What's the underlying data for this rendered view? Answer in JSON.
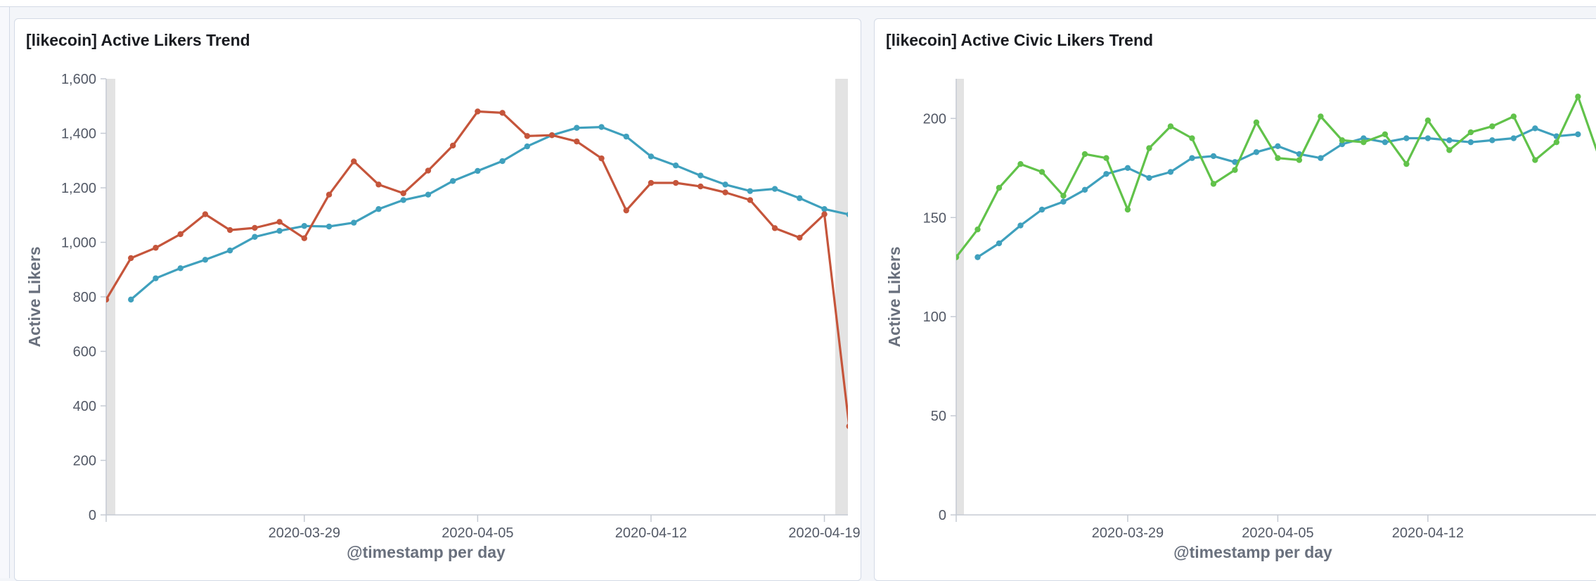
{
  "colors": {
    "series_teal": "#3fa0bd",
    "series_red": "#c5553b",
    "series_green": "#61c24a",
    "axis": "#c5cad3",
    "edge_band": "#e3e3e3"
  },
  "chart_data": [
    {
      "type": "line",
      "title": "[likecoin] Active Likers Trend",
      "xlabel": "@timestamp per day",
      "ylabel": "Active Likers",
      "ylim": [
        0,
        1600
      ],
      "yticks": [
        "0",
        "200",
        "400",
        "600",
        "800",
        "1,000",
        "1,200",
        "1,400",
        "1,600"
      ],
      "xticks": [
        "2020-03-29",
        "2020-04-05",
        "2020-04-12",
        "2020-04-19"
      ],
      "grid": false,
      "legend": "none",
      "series": [
        {
          "color": "#3fa0bd",
          "points": [
            [
              "2020-03-22",
              790
            ],
            [
              "2020-03-23",
              868
            ],
            [
              "2020-03-24",
              905
            ],
            [
              "2020-03-25",
              936
            ],
            [
              "2020-03-26",
              970
            ],
            [
              "2020-03-27",
              1020
            ],
            [
              "2020-03-28",
              1042
            ],
            [
              "2020-03-29",
              1060
            ],
            [
              "2020-03-30",
              1058
            ],
            [
              "2020-03-31",
              1072
            ],
            [
              "2020-04-01",
              1122
            ],
            [
              "2020-04-02",
              1155
            ],
            [
              "2020-04-03",
              1175
            ],
            [
              "2020-04-04",
              1225
            ],
            [
              "2020-04-05",
              1262
            ],
            [
              "2020-04-06",
              1298
            ],
            [
              "2020-04-07",
              1352
            ],
            [
              "2020-04-08",
              1393
            ],
            [
              "2020-04-09",
              1420
            ],
            [
              "2020-04-10",
              1423
            ],
            [
              "2020-04-11",
              1388
            ],
            [
              "2020-04-12",
              1315
            ],
            [
              "2020-04-13",
              1282
            ],
            [
              "2020-04-14",
              1245
            ],
            [
              "2020-04-15",
              1212
            ],
            [
              "2020-04-16",
              1188
            ],
            [
              "2020-04-17",
              1196
            ],
            [
              "2020-04-18",
              1162
            ],
            [
              "2020-04-19",
              1122
            ],
            [
              "2020-04-20",
              1102
            ]
          ]
        },
        {
          "color": "#c5553b",
          "points": [
            [
              "2020-03-21",
              790
            ],
            [
              "2020-03-22",
              942
            ],
            [
              "2020-03-23",
              980
            ],
            [
              "2020-03-24",
              1030
            ],
            [
              "2020-03-25",
              1103
            ],
            [
              "2020-03-26",
              1045
            ],
            [
              "2020-03-27",
              1053
            ],
            [
              "2020-03-28",
              1075
            ],
            [
              "2020-03-29",
              1015
            ],
            [
              "2020-03-30",
              1175
            ],
            [
              "2020-03-31",
              1297
            ],
            [
              "2020-04-01",
              1212
            ],
            [
              "2020-04-02",
              1180
            ],
            [
              "2020-04-03",
              1263
            ],
            [
              "2020-04-04",
              1355
            ],
            [
              "2020-04-05",
              1480
            ],
            [
              "2020-04-06",
              1475
            ],
            [
              "2020-04-07",
              1390
            ],
            [
              "2020-04-08",
              1393
            ],
            [
              "2020-04-09",
              1370
            ],
            [
              "2020-04-10",
              1308
            ],
            [
              "2020-04-11",
              1117
            ],
            [
              "2020-04-12",
              1218
            ],
            [
              "2020-04-13",
              1218
            ],
            [
              "2020-04-14",
              1205
            ],
            [
              "2020-04-15",
              1183
            ],
            [
              "2020-04-16",
              1155
            ],
            [
              "2020-04-17",
              1052
            ],
            [
              "2020-04-18",
              1017
            ],
            [
              "2020-04-19",
              1103
            ],
            [
              "2020-04-20",
              325
            ]
          ]
        }
      ]
    },
    {
      "type": "line",
      "title": "[likecoin] Active Civic Likers Trend",
      "xlabel": "@timestamp per day",
      "ylabel": "Active Likers",
      "ylim": [
        0,
        220
      ],
      "yticks": [
        "0",
        "50",
        "100",
        "150",
        "200"
      ],
      "xticks": [
        "2020-03-29",
        "2020-04-05",
        "2020-04-12"
      ],
      "grid": false,
      "legend": "none",
      "series": [
        {
          "color": "#3fa0bd",
          "points": [
            [
              "2020-03-22",
              130
            ],
            [
              "2020-03-23",
              137
            ],
            [
              "2020-03-24",
              146
            ],
            [
              "2020-03-25",
              154
            ],
            [
              "2020-03-26",
              158
            ],
            [
              "2020-03-27",
              164
            ],
            [
              "2020-03-28",
              172
            ],
            [
              "2020-03-29",
              175
            ],
            [
              "2020-03-30",
              170
            ],
            [
              "2020-03-31",
              173
            ],
            [
              "2020-04-01",
              180
            ],
            [
              "2020-04-02",
              181
            ],
            [
              "2020-04-03",
              178
            ],
            [
              "2020-04-04",
              183
            ],
            [
              "2020-04-05",
              186
            ],
            [
              "2020-04-06",
              182
            ],
            [
              "2020-04-07",
              180
            ],
            [
              "2020-04-08",
              187
            ],
            [
              "2020-04-09",
              190
            ],
            [
              "2020-04-10",
              188
            ],
            [
              "2020-04-11",
              190
            ],
            [
              "2020-04-12",
              190
            ],
            [
              "2020-04-13",
              189
            ],
            [
              "2020-04-14",
              188
            ],
            [
              "2020-04-15",
              189
            ],
            [
              "2020-04-16",
              190
            ],
            [
              "2020-04-17",
              195
            ],
            [
              "2020-04-18",
              191
            ],
            [
              "2020-04-19",
              192
            ]
          ]
        },
        {
          "color": "#61c24a",
          "points": [
            [
              "2020-03-21",
              130
            ],
            [
              "2020-03-22",
              144
            ],
            [
              "2020-03-23",
              165
            ],
            [
              "2020-03-24",
              177
            ],
            [
              "2020-03-25",
              173
            ],
            [
              "2020-03-26",
              161
            ],
            [
              "2020-03-27",
              182
            ],
            [
              "2020-03-28",
              180
            ],
            [
              "2020-03-29",
              154
            ],
            [
              "2020-03-30",
              185
            ],
            [
              "2020-03-31",
              196
            ],
            [
              "2020-04-01",
              190
            ],
            [
              "2020-04-02",
              167
            ],
            [
              "2020-04-03",
              174
            ],
            [
              "2020-04-04",
              198
            ],
            [
              "2020-04-05",
              180
            ],
            [
              "2020-04-06",
              179
            ],
            [
              "2020-04-07",
              201
            ],
            [
              "2020-04-08",
              189
            ],
            [
              "2020-04-09",
              188
            ],
            [
              "2020-04-10",
              192
            ],
            [
              "2020-04-11",
              177
            ],
            [
              "2020-04-12",
              199
            ],
            [
              "2020-04-13",
              184
            ],
            [
              "2020-04-14",
              193
            ],
            [
              "2020-04-15",
              196
            ],
            [
              "2020-04-16",
              201
            ],
            [
              "2020-04-17",
              179
            ],
            [
              "2020-04-18",
              188
            ],
            [
              "2020-04-19",
              211
            ],
            [
              "2020-04-20",
              180
            ]
          ]
        }
      ]
    }
  ]
}
